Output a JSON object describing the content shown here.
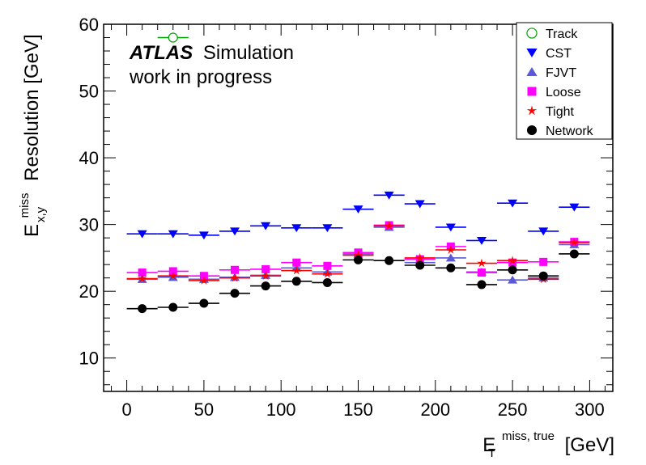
{
  "chart_data": {
    "type": "scatter",
    "annotation": {
      "experiment": "ATLAS",
      "label": "Simulation",
      "status": "work in progress"
    },
    "xlabel": {
      "base": "E",
      "sup": "miss, true",
      "sub": "T",
      "unit": "[GeV]"
    },
    "ylabel": {
      "base": "E",
      "sup": "miss",
      "sub": "x,y",
      "text": "Resolution [GeV]"
    },
    "xlim": [
      -15,
      315
    ],
    "ylim": [
      5,
      60
    ],
    "xticks": [
      0,
      50,
      100,
      150,
      200,
      250,
      300
    ],
    "yticks": [
      10,
      20,
      30,
      40,
      50,
      60
    ],
    "legend_position": "top-right",
    "bin_half_width": 10,
    "x": [
      10,
      30,
      50,
      70,
      90,
      110,
      130,
      150,
      170,
      190,
      210,
      230,
      250,
      270,
      290
    ],
    "series": [
      {
        "name": "Track",
        "marker": "open-circle",
        "color": "#00a000",
        "x": [
          30
        ],
        "values": [
          58
        ]
      },
      {
        "name": "CST",
        "marker": "triangle-down",
        "color": "#0000ff",
        "values": [
          28.6,
          28.6,
          28.4,
          29.0,
          29.8,
          29.5,
          29.5,
          32.3,
          34.4,
          33.1,
          29.6,
          27.6,
          33.2,
          29.0,
          32.6
        ]
      },
      {
        "name": "FJVT",
        "marker": "triangle-up",
        "color": "#5a5ad8",
        "values": [
          21.8,
          22.1,
          21.8,
          22.1,
          22.4,
          23.5,
          22.9,
          25.6,
          29.6,
          24.3,
          25.0,
          22.9,
          21.7,
          22.0,
          27.0
        ]
      },
      {
        "name": "Loose",
        "marker": "square",
        "color": "#ff00ff",
        "values": [
          22.8,
          23.0,
          22.3,
          23.2,
          23.3,
          24.3,
          23.8,
          25.8,
          29.9,
          24.8,
          26.7,
          22.8,
          24.3,
          24.4,
          27.4
        ]
      },
      {
        "name": "Tight",
        "marker": "star",
        "color": "#ff0000",
        "values": [
          21.9,
          22.3,
          21.6,
          22.0,
          22.3,
          23.1,
          22.6,
          25.4,
          29.8,
          25.0,
          26.2,
          24.2,
          24.6,
          21.8,
          27.3
        ]
      },
      {
        "name": "Network",
        "marker": "circle",
        "color": "#000000",
        "values": [
          17.4,
          17.6,
          18.2,
          19.7,
          20.8,
          21.5,
          21.3,
          24.7,
          24.6,
          23.9,
          23.5,
          21.0,
          23.2,
          22.3,
          25.6
        ]
      }
    ]
  }
}
